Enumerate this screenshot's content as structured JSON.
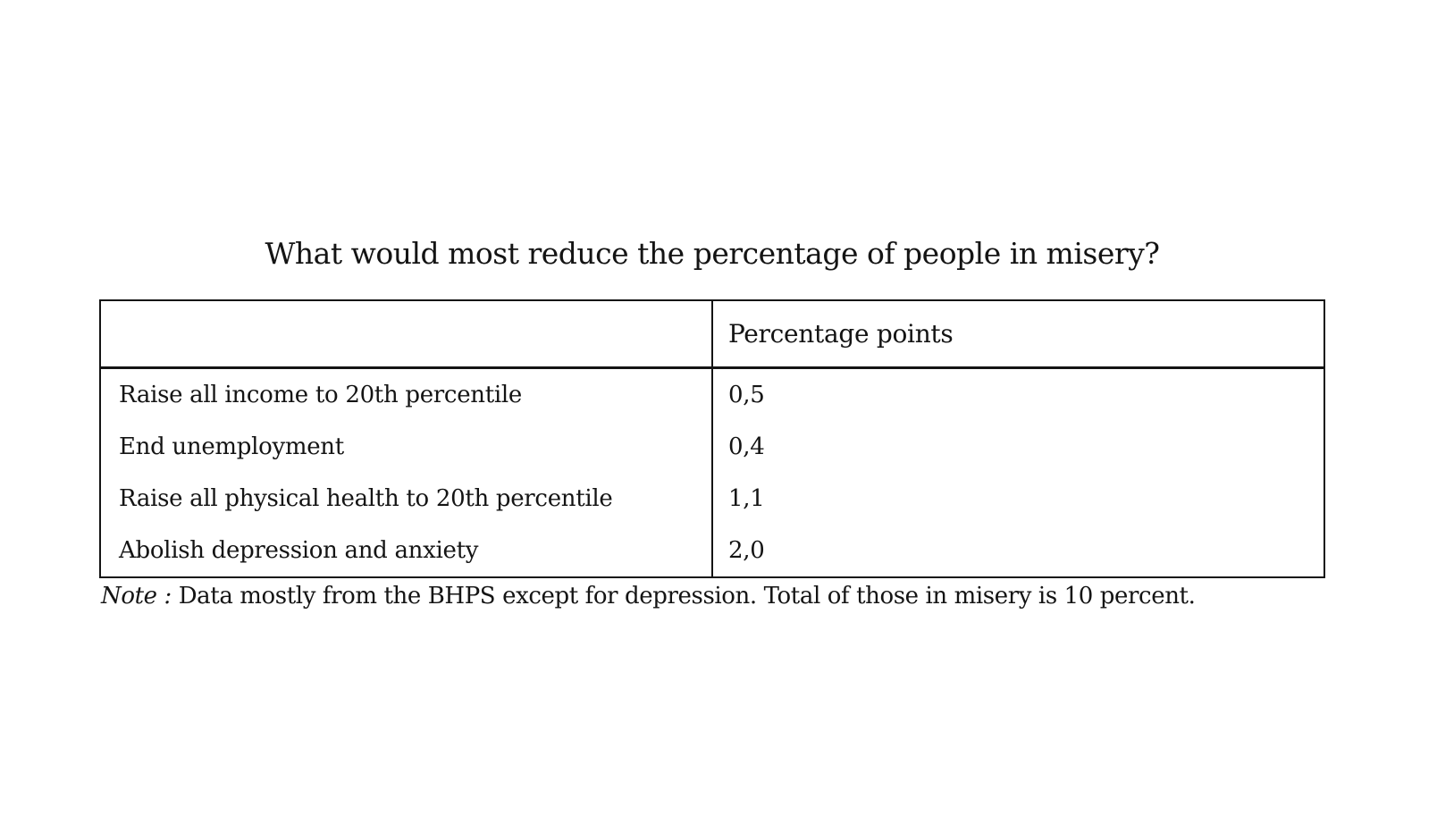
{
  "title": "What would most reduce the percentage of people in misery?",
  "table": {
    "columns": [
      "",
      "Percentage points"
    ],
    "rows": [
      {
        "label": "Raise all income to 20th percentile",
        "value": "0,5"
      },
      {
        "label": "End unemployment",
        "value": "0,4"
      },
      {
        "label": "Raise all physical health to 20th percentile",
        "value": "1,1"
      },
      {
        "label": "Abolish depression and anxiety",
        "value": "2,0"
      }
    ]
  },
  "note": {
    "prefix": "Note : ",
    "text": "Data mostly from the BHPS except for depression. Total of those in misery is 10 percent."
  },
  "chart_data": {
    "type": "table",
    "title": "What would most reduce the percentage of people in misery?",
    "columns": [
      "",
      "Percentage points"
    ],
    "categories": [
      "Raise all income to 20th percentile",
      "End unemployment",
      "Raise all physical health to 20th percentile",
      "Abolish depression and anxiety"
    ],
    "values": [
      0.5,
      0.4,
      1.1,
      2.0
    ],
    "value_labels": [
      "0,5",
      "0,4",
      "1,1",
      "2,0"
    ],
    "decimal_separator": ",",
    "note": "Note : Data mostly from the BHPS except for depression. Total of those in misery is 10 percent."
  },
  "colors": {
    "background": "#ffffff",
    "text": "#141414",
    "border": "#141414"
  }
}
